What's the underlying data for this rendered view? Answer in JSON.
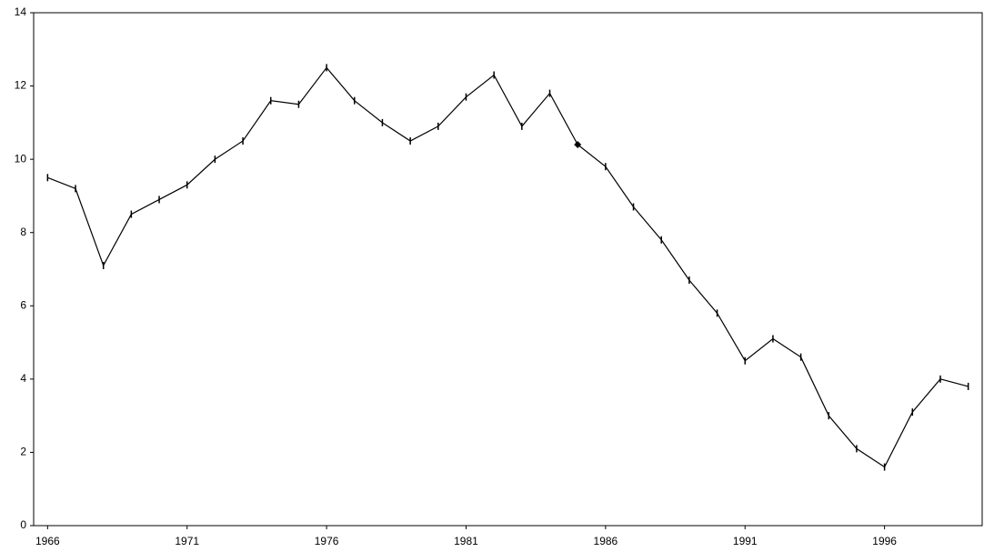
{
  "chart_data": {
    "type": "line",
    "x": [
      1966,
      1967,
      1968,
      1969,
      1970,
      1971,
      1972,
      1973,
      1974,
      1975,
      1976,
      1977,
      1978,
      1979,
      1980,
      1981,
      1982,
      1983,
      1984,
      1985,
      1986,
      1987,
      1988,
      1989,
      1990,
      1991,
      1992,
      1993,
      1994,
      1995,
      1996,
      1997,
      1998,
      1999
    ],
    "values": [
      9.5,
      9.2,
      7.1,
      8.5,
      8.9,
      9.3,
      10.0,
      10.5,
      11.6,
      11.5,
      12.5,
      11.6,
      11.0,
      10.5,
      10.9,
      11.7,
      12.3,
      10.9,
      11.8,
      10.4,
      9.8,
      8.7,
      7.8,
      6.7,
      5.8,
      4.5,
      5.1,
      4.6,
      3.0,
      2.1,
      1.6,
      3.1,
      4.0,
      3.8
    ],
    "color": "#000000",
    "marker": "dash",
    "highlighted_point": 19,
    "highlight_marker": "diamond",
    "xlim": [
      1965.5,
      1999.5
    ],
    "xticks": [
      1966,
      1971,
      1976,
      1981,
      1986,
      1991,
      1996
    ],
    "ylim": [
      0,
      14
    ],
    "yticks": [
      0,
      2,
      4,
      6,
      8,
      10,
      12,
      14
    ],
    "grid": false
  }
}
